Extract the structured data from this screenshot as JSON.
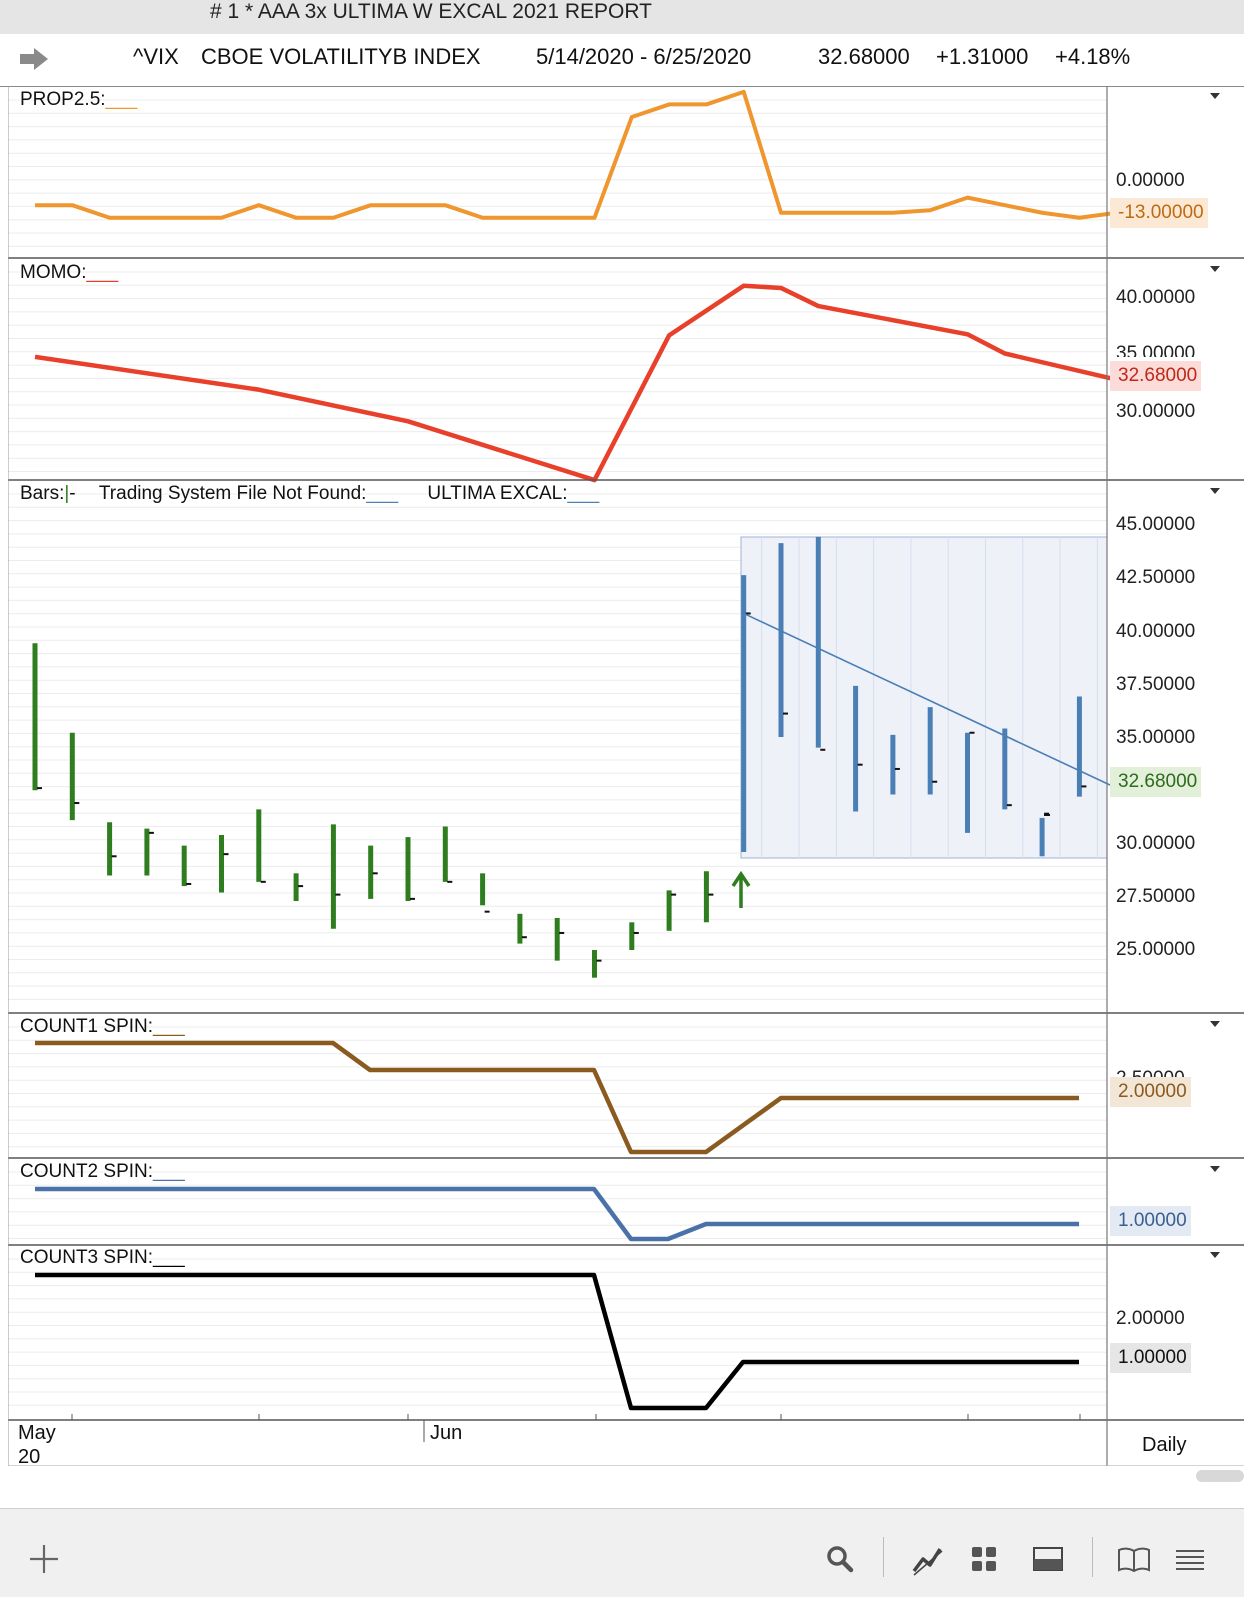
{
  "window": {
    "title": "#  1 * AAA 3x ULTIMA W EXCAL 2021 REPORT"
  },
  "symbol_bar": {
    "symbol": "^VIX",
    "name": "CBOE VOLATILITYB INDEX",
    "date_range": "5/14/2020 - 6/25/2020",
    "last": "32.68000",
    "change": "+1.31000",
    "change_pct": "+4.18%"
  },
  "panes": {
    "prop": {
      "label": "PROP2.5:",
      "ticks": [
        "0.00000"
      ],
      "value_tag": "-13.00000",
      "color": "#f0962e"
    },
    "momo": {
      "label": "MOMO:",
      "ticks": [
        "40.00000",
        "35.00000",
        "30.00000"
      ],
      "value_tag": "32.68000",
      "color": "#e8402a"
    },
    "bars": {
      "label": "Bars:",
      "label_suffix": "-",
      "tsf_label": "Trading System File Not Found:",
      "excal_label": "ULTIMA EXCAL:",
      "ticks": [
        "45.00000",
        "42.50000",
        "40.00000",
        "37.50000",
        "35.00000",
        "30.00000",
        "27.50000",
        "25.00000"
      ],
      "value_tag": "32.68000",
      "up_color": "#2e7d1e",
      "excal_color": "#4a7fb5"
    },
    "count1": {
      "label": "COUNT1 SPIN:",
      "value_tag": "2.00000",
      "color": "#8b5a1e"
    },
    "count2": {
      "label": "COUNT2 SPIN:",
      "value_tag": "1.00000",
      "color": "#4a72a8"
    },
    "count3": {
      "label": "COUNT3 SPIN:",
      "ticks": [
        "2.00000"
      ],
      "value_tag": "1.00000",
      "color": "#000000"
    }
  },
  "x_axis": {
    "labels": [
      "May",
      "20",
      "Jun"
    ],
    "period": "Daily"
  },
  "toolbar": {
    "add": "add-icon",
    "search": "search-icon",
    "draw": "draw-line-icon",
    "layout": "grid-layout-icon",
    "window": "window-icon",
    "book": "book-icon",
    "menu": "menu-icon"
  },
  "chart_data": [
    {
      "type": "line",
      "name": "PROP2.5",
      "x": [
        "5/14",
        "5/15",
        "5/18",
        "5/19",
        "5/20",
        "5/21",
        "5/22",
        "5/26",
        "5/27",
        "5/28",
        "5/29",
        "6/1",
        "6/2",
        "6/3",
        "6/4",
        "6/5",
        "6/8",
        "6/9",
        "6/10",
        "6/11",
        "6/12",
        "6/15",
        "6/16",
        "6/17",
        "6/18",
        "6/19",
        "6/22",
        "6/23",
        "6/24",
        "6/25"
      ],
      "y": [
        -10,
        -10,
        -15,
        -15,
        -15,
        -15,
        -10,
        -15,
        -15,
        -10,
        -10,
        -10,
        -15,
        -15,
        -15,
        -15,
        25,
        30,
        30,
        35,
        -13,
        -13,
        -13,
        -13,
        -12,
        -7,
        -10,
        -13,
        -15,
        -13
      ]
    },
    {
      "type": "line",
      "name": "MOMO",
      "x": [
        "5/14",
        "5/22",
        "5/29",
        "6/5",
        "6/9",
        "6/11",
        "6/12",
        "6/15",
        "6/19",
        "6/22",
        "6/25"
      ],
      "y": [
        34.7,
        31.8,
        29.0,
        23.8,
        36.6,
        41.0,
        40.8,
        39.2,
        36.7,
        35.0,
        32.68
      ]
    },
    {
      "type": "bar",
      "name": "^VIX OHLC",
      "x": [
        "5/14",
        "5/15",
        "5/18",
        "5/19",
        "5/20",
        "5/21",
        "5/22",
        "5/26",
        "5/27",
        "5/28",
        "5/29",
        "6/1",
        "6/2",
        "6/3",
        "6/4",
        "6/5",
        "6/8",
        "6/9",
        "6/10",
        "6/11",
        "6/12",
        "6/15",
        "6/16",
        "6/17",
        "6/18",
        "6/19",
        "6/22",
        "6/23",
        "6/24",
        "6/25"
      ],
      "high": [
        39.4,
        35.2,
        31.0,
        30.7,
        29.9,
        30.4,
        31.6,
        28.6,
        30.9,
        29.9,
        30.3,
        30.8,
        28.6,
        26.7,
        26.5,
        25.0,
        26.3,
        27.8,
        28.7,
        42.6,
        44.1,
        44.4,
        37.4,
        35.1,
        36.4,
        35.2,
        35.4,
        31.2,
        36.9,
        null
      ],
      "low": [
        32.5,
        31.1,
        28.5,
        28.5,
        28.0,
        27.7,
        28.2,
        27.3,
        26.0,
        27.4,
        27.3,
        28.2,
        27.1,
        25.3,
        24.5,
        23.7,
        25.0,
        25.9,
        26.3,
        29.6,
        35.0,
        34.5,
        31.5,
        32.3,
        32.3,
        30.5,
        31.6,
        29.4,
        32.2,
        null
      ],
      "close": [
        32.6,
        31.9,
        29.4,
        30.5,
        28.1,
        29.5,
        28.2,
        28.0,
        27.6,
        28.6,
        27.4,
        28.2,
        26.8,
        25.6,
        25.8,
        24.5,
        25.8,
        27.6,
        27.6,
        40.8,
        36.1,
        34.4,
        33.7,
        33.5,
        32.9,
        35.2,
        31.8,
        31.4,
        32.68,
        null
      ],
      "trend_line": {
        "from": [
          "6/11",
          40.8
        ],
        "to": [
          "6/25",
          32.6
        ]
      },
      "ylim": [
        22.5,
        47.5
      ]
    },
    {
      "type": "line",
      "name": "COUNT1 SPIN",
      "y_levels": [
        4,
        3,
        1,
        2
      ]
    },
    {
      "type": "line",
      "name": "COUNT2 SPIN",
      "y_levels": [
        2,
        0,
        1
      ]
    },
    {
      "type": "line",
      "name": "COUNT3 SPIN",
      "y_levels": [
        3,
        0,
        1
      ]
    }
  ]
}
